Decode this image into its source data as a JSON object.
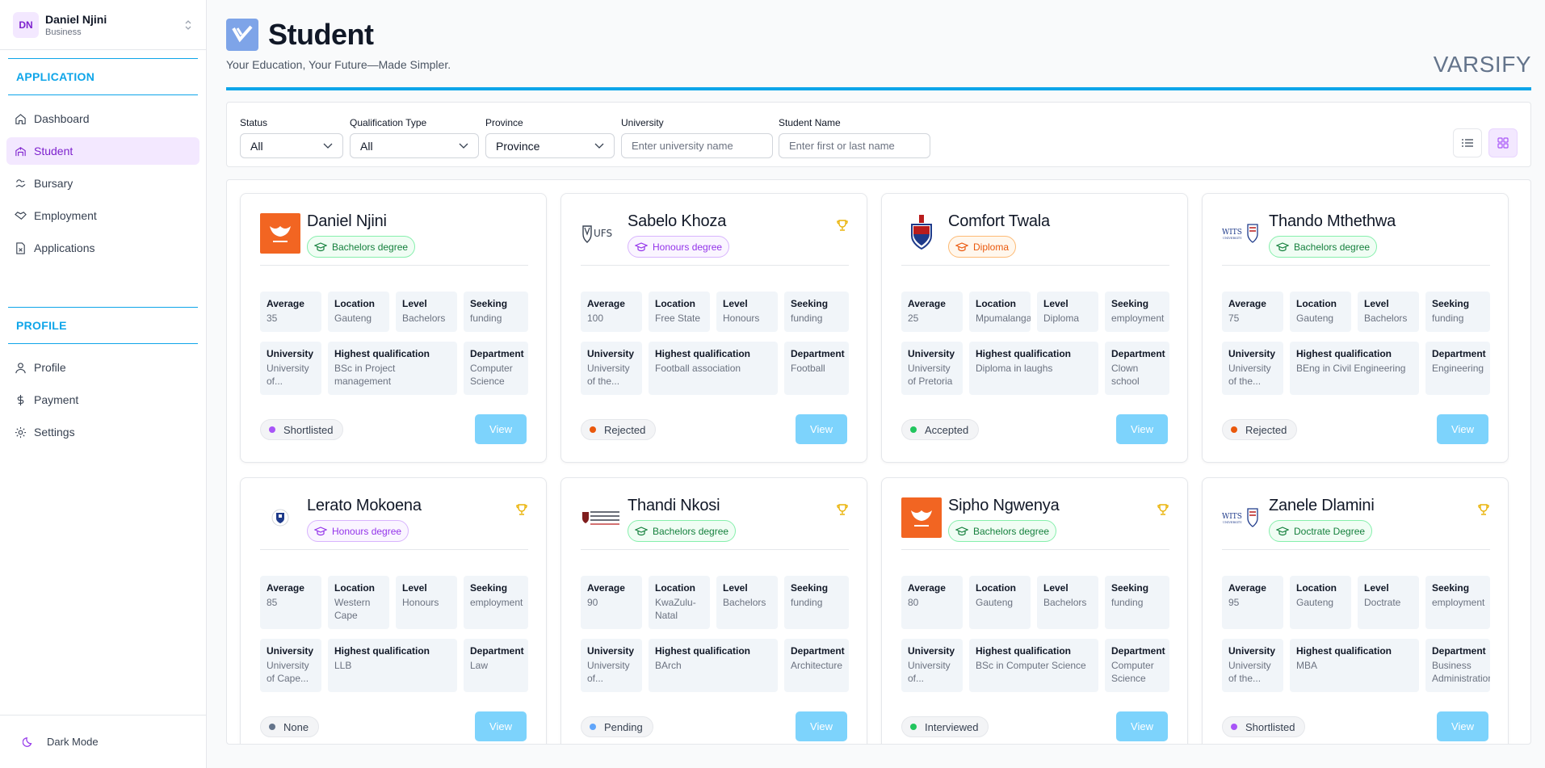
{
  "user": {
    "initials": "DN",
    "name": "Daniel Njini",
    "role": "Business"
  },
  "sidebar": {
    "application_heading": "APPLICATION",
    "application_items": [
      {
        "label": "Dashboard",
        "icon": "home-icon"
      },
      {
        "label": "Student",
        "icon": "school-icon"
      },
      {
        "label": "Bursary",
        "icon": "bursary-icon"
      },
      {
        "label": "Employment",
        "icon": "handshake-icon"
      },
      {
        "label": "Applications",
        "icon": "document-icon"
      }
    ],
    "profile_heading": "PROFILE",
    "profile_items": [
      {
        "label": "Profile",
        "icon": "user-icon"
      },
      {
        "label": "Payment",
        "icon": "dollar-icon"
      },
      {
        "label": "Settings",
        "icon": "gear-icon"
      }
    ],
    "dark_mode_label": "Dark Mode"
  },
  "header": {
    "title": "Student",
    "tagline": "Your Education, Your Future—Made Simpler.",
    "brand": "VARSIFY"
  },
  "filters": {
    "status": {
      "label": "Status",
      "value": "All"
    },
    "qualification": {
      "label": "Qualification Type",
      "value": "All"
    },
    "province": {
      "label": "Province",
      "value": "Province"
    },
    "university": {
      "label": "University",
      "placeholder": "Enter university name"
    },
    "student_name": {
      "label": "Student Name",
      "placeholder": "Enter first or last name"
    }
  },
  "labels": {
    "average": "Average",
    "location": "Location",
    "level": "Level",
    "seeking": "Seeking",
    "university": "University",
    "highest_qualification": "Highest qualification",
    "department": "Department",
    "view": "View"
  },
  "colors": {
    "accent": "#0ea5e9",
    "purple": "#7e22ce",
    "view_button": "#7dd3fc",
    "badge_green": "#16a34a",
    "badge_purple": "#9333ea",
    "badge_orange": "#ea580c"
  },
  "students": [
    {
      "name": "Daniel Njini",
      "badge": "Bachelors degree",
      "badge_color": "green",
      "logo": "uj-logo",
      "trophy": false,
      "average": "35",
      "location": "Gauteng",
      "level": "Bachelors",
      "seeking": "funding",
      "university": "University of...",
      "qualification": "BSc in Project management",
      "department": "Computer Science",
      "status": "Shortlisted",
      "status_color": "#a855f7"
    },
    {
      "name": "Sabelo Khoza",
      "badge": "Honours degree",
      "badge_color": "purple",
      "logo": "ufs-logo",
      "trophy": true,
      "average": "100",
      "location": "Free State",
      "level": "Honours",
      "seeking": "funding",
      "university": "University of the...",
      "qualification": "Football association",
      "department": "Football",
      "status": "Rejected",
      "status_color": "#ea580c"
    },
    {
      "name": "Comfort Twala",
      "badge": "Diploma",
      "badge_color": "orange",
      "logo": "up-logo",
      "trophy": false,
      "average": "25",
      "location": "Mpumalanga",
      "level": "Diploma",
      "seeking": "employment",
      "university": "University of Pretoria",
      "qualification": "Diploma in laughs",
      "department": "Clown school",
      "status": "Accepted",
      "status_color": "#22c55e"
    },
    {
      "name": "Thando Mthethwa",
      "badge": "Bachelors degree",
      "badge_color": "green",
      "logo": "wits-logo",
      "trophy": false,
      "average": "75",
      "location": "Gauteng",
      "level": "Bachelors",
      "seeking": "funding",
      "university": "University of the...",
      "qualification": "BEng in Civil Engineering",
      "department": "Engineering",
      "status": "Rejected",
      "status_color": "#ea580c"
    },
    {
      "name": "Lerato Mokoena",
      "badge": "Honours degree",
      "badge_color": "purple",
      "logo": "uct-logo",
      "trophy": true,
      "average": "85",
      "location": "Western Cape",
      "level": "Honours",
      "seeking": "employment",
      "university": "University of Cape...",
      "qualification": "LLB",
      "department": "Law",
      "status": "None",
      "status_color": "#64748b"
    },
    {
      "name": "Thandi Nkosi",
      "badge": "Bachelors degree",
      "badge_color": "green",
      "logo": "ukzn-logo",
      "trophy": true,
      "average": "90",
      "location": "KwaZulu-Natal",
      "level": "Bachelors",
      "seeking": "funding",
      "university": "University of...",
      "qualification": "BArch",
      "department": "Architecture",
      "status": "Pending",
      "status_color": "#60a5fa"
    },
    {
      "name": "Sipho Ngwenya",
      "badge": "Bachelors degree",
      "badge_color": "green",
      "logo": "uj-logo",
      "trophy": true,
      "average": "80",
      "location": "Gauteng",
      "level": "Bachelors",
      "seeking": "funding",
      "university": "University of...",
      "qualification": "BSc in Computer Science",
      "department": "Computer Science",
      "status": "Interviewed",
      "status_color": "#22c55e"
    },
    {
      "name": "Zanele Dlamini",
      "badge": "Doctrate Degree",
      "badge_color": "green",
      "logo": "wits-logo",
      "trophy": true,
      "average": "95",
      "location": "Gauteng",
      "level": "Doctrate",
      "seeking": "employment",
      "university": "University of the...",
      "qualification": "MBA",
      "department": "Business Administration",
      "status": "Shortlisted",
      "status_color": "#a855f7"
    }
  ]
}
